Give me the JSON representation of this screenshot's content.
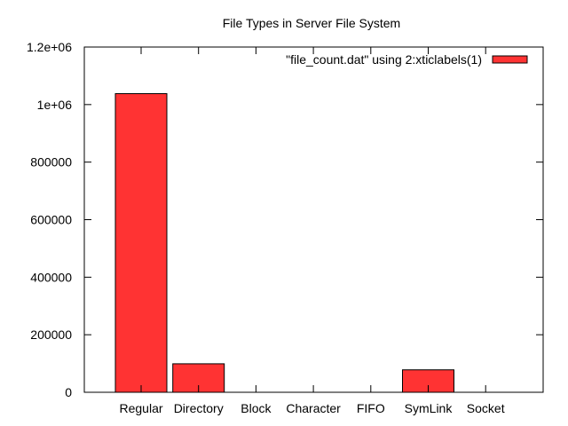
{
  "chart_data": {
    "type": "bar",
    "title": "File Types in Server File System",
    "categories": [
      "Regular",
      "Directory",
      "Block",
      "Character",
      "FIFO",
      "SymLink",
      "Socket"
    ],
    "values": [
      1038000,
      99000,
      0,
      0,
      0,
      78000,
      0
    ],
    "ylim": [
      0,
      1200000
    ],
    "yticks": [
      0,
      200000,
      400000,
      600000,
      800000,
      1000000,
      1200000
    ],
    "ytick_labels": [
      "0",
      "200000",
      "400000",
      "600000",
      "800000",
      "1e+06",
      "1.2e+06"
    ],
    "xlabel": "",
    "ylabel": "",
    "legend": {
      "label": "\"file_count.dat\" using 2:xticlabels(1)",
      "position": "top-right"
    },
    "bar_color": "#ff3333",
    "grid": false
  }
}
